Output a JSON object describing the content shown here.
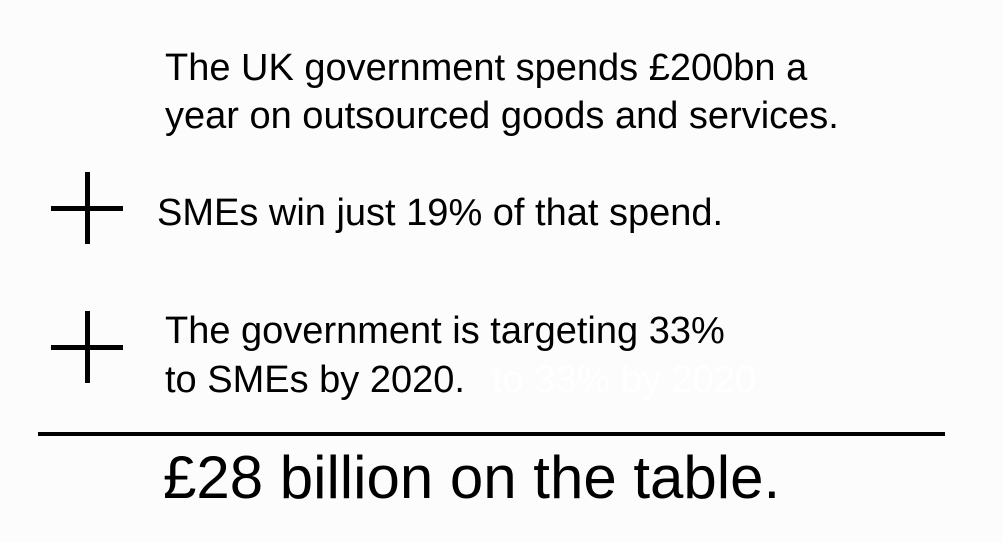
{
  "statements": {
    "line1": "The UK government spends £200bn a",
    "line2": "year on outsourced goods and services.",
    "line3": "SMEs win just 19% of that spend.",
    "line4": "The government is targeting 33%",
    "line5": "to SMEs by 2020.",
    "ghost_text": "to 33% by 2020"
  },
  "operators": {
    "first": "plus-icon",
    "second": "plus-icon",
    "result": "sum-divider"
  },
  "total": {
    "text": "£28 billion on the table."
  },
  "colors": {
    "background": "#fcfcfc",
    "text": "#000000",
    "ghost_text": "#ffffff"
  }
}
